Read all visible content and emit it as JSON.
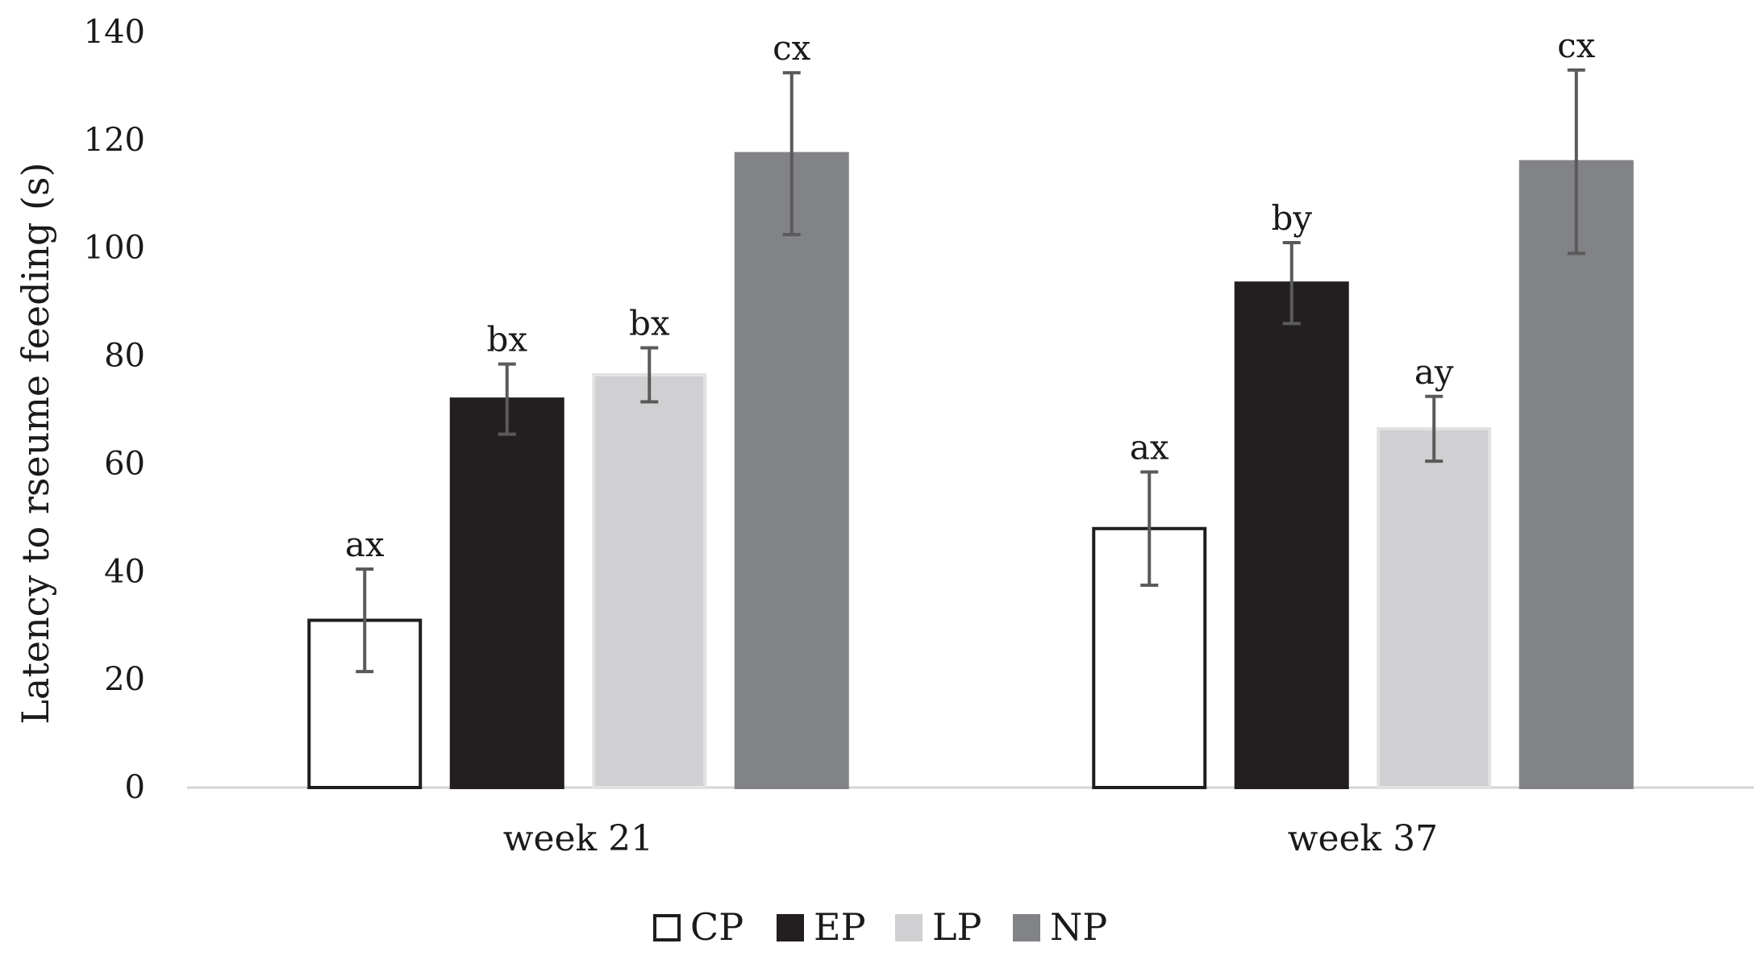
{
  "chart_data": {
    "type": "bar",
    "title": "",
    "xlabel": "",
    "ylabel": "Latency to rseume feeding (s)",
    "ylim": [
      0,
      140
    ],
    "yticks": [
      0,
      20,
      40,
      60,
      80,
      100,
      120,
      140
    ],
    "grid": false,
    "legend_position": "bottom",
    "categories": [
      "week 21",
      "week 37"
    ],
    "series": [
      {
        "name": "CP",
        "color": "#ffffff",
        "stroke": "#1e1e1e",
        "values": [
          31,
          48
        ],
        "errors": [
          9.5,
          10.5
        ],
        "labels": [
          "ax",
          "ax"
        ]
      },
      {
        "name": "EP",
        "color": "#231f20",
        "stroke": "#231f20",
        "values": [
          72,
          93.5
        ],
        "errors": [
          6.5,
          7.5
        ],
        "labels": [
          "bx",
          "by"
        ]
      },
      {
        "name": "LP",
        "color": "#d0d0d2",
        "stroke": "#e2e2e4",
        "values": [
          76.5,
          66.5
        ],
        "errors": [
          5,
          6
        ],
        "labels": [
          "bx",
          "ay"
        ]
      },
      {
        "name": "NP",
        "color": "#828387",
        "stroke": "#828387",
        "values": [
          117.5,
          116
        ],
        "errors": [
          15,
          17
        ],
        "labels": [
          "cx",
          "cx"
        ]
      }
    ]
  }
}
